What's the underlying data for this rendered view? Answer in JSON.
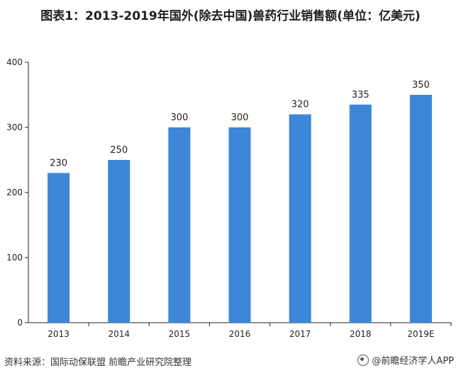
{
  "title": "图表1：2013-2019年国外(除去中国)兽药行业销售额(单位：亿美元)",
  "source": "资料来源：国际动保联盟 前瞻产业研究院整理",
  "brand": "@前瞻经济学人APP",
  "colors": {
    "bar": "#3d86d8",
    "axis": "#222222",
    "text": "#222222"
  },
  "chart_data": {
    "type": "bar",
    "categories": [
      "2013",
      "2014",
      "2015",
      "2016",
      "2017",
      "2018",
      "2019E"
    ],
    "values": [
      230,
      250,
      300,
      300,
      320,
      335,
      350
    ],
    "data_labels": [
      "230",
      "250",
      "300",
      "300",
      "320",
      "335",
      "350"
    ],
    "yticks": [
      "0",
      "100",
      "200",
      "300",
      "400"
    ],
    "ylim": [
      0,
      400
    ],
    "xlabel": "",
    "ylabel": "",
    "grid": false,
    "legend": "none"
  }
}
